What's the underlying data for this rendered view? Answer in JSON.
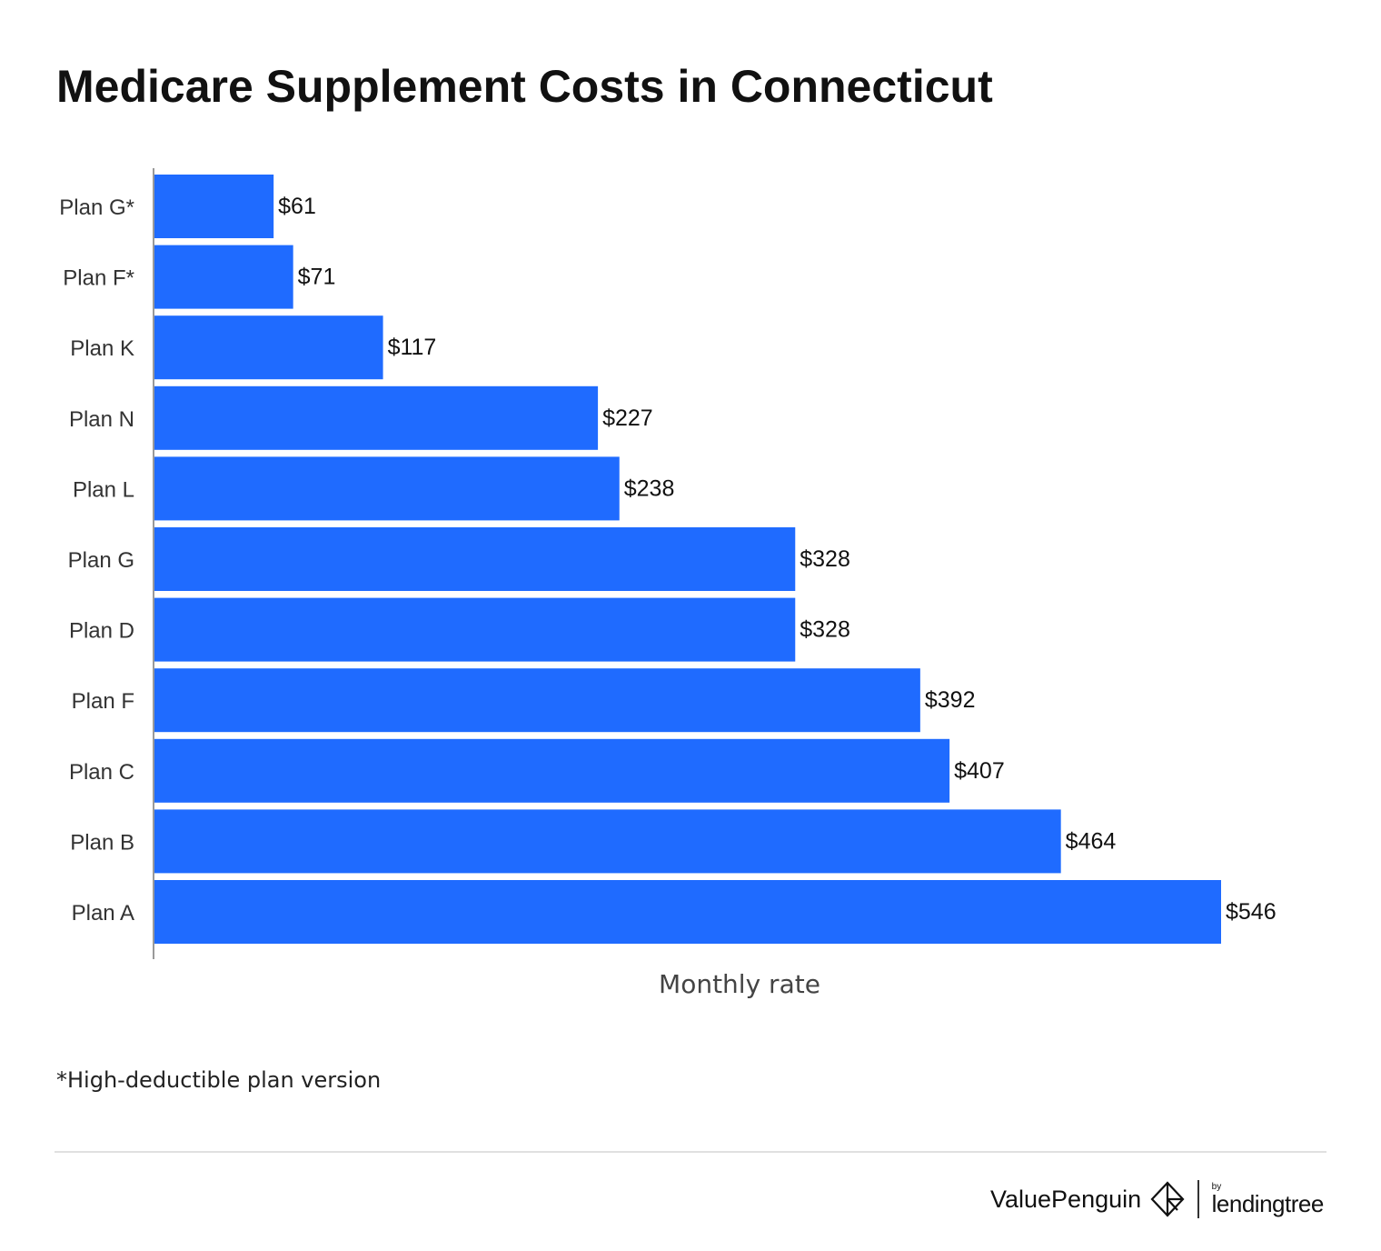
{
  "title": "Medicare Supplement Costs in Connecticut",
  "footnote": "*High-deductible plan version",
  "brand": {
    "name": "ValuePenguin",
    "partner_prefix": "by",
    "partner": "lendingtree"
  },
  "colors": {
    "bar": "#1f6bff",
    "axis": "#999999",
    "text": "#111111"
  },
  "chart_data": {
    "type": "bar",
    "orientation": "horizontal",
    "title": "Medicare Supplement Costs in Connecticut",
    "xlabel": "Monthly rate",
    "ylabel": "",
    "categories": [
      "Plan G*",
      "Plan F*",
      "Plan K",
      "Plan N",
      "Plan L",
      "Plan G",
      "Plan D",
      "Plan F",
      "Plan C",
      "Plan B",
      "Plan A"
    ],
    "values": [
      61,
      71,
      117,
      227,
      238,
      328,
      328,
      392,
      407,
      464,
      546
    ],
    "data_labels": [
      "$61",
      "$71",
      "$117",
      "$227",
      "$238",
      "$328",
      "$328",
      "$392",
      "$407",
      "$464",
      "$546"
    ],
    "xlim": [
      0,
      546
    ],
    "grid": false,
    "legend": "none"
  }
}
